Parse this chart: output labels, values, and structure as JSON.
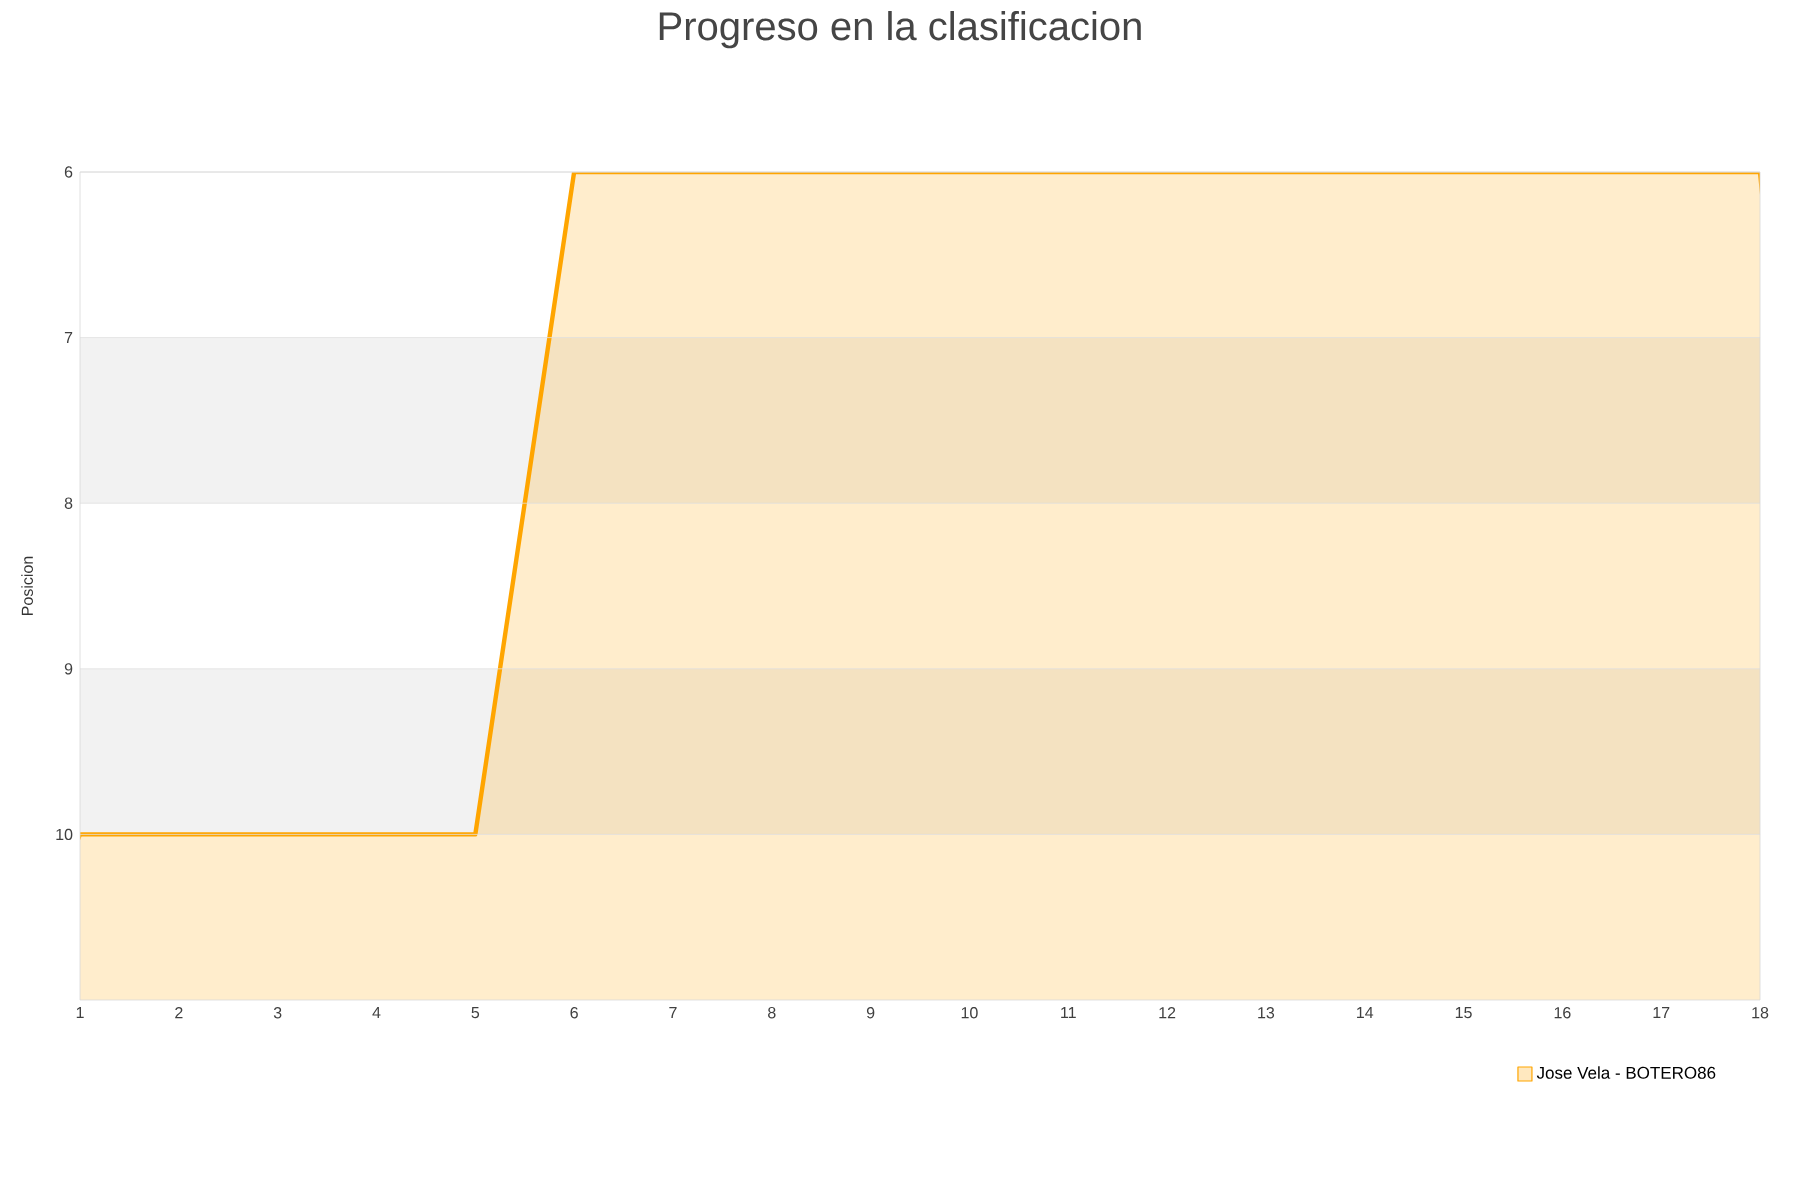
{
  "chart_data": {
    "type": "area",
    "title": "Progreso en la clasificacion",
    "ylabel": "Posicion",
    "x": [
      1,
      2,
      3,
      4,
      5,
      6,
      7,
      8,
      9,
      10,
      11,
      12,
      13,
      14,
      15,
      16,
      17,
      18
    ],
    "xlim": [
      1,
      18
    ],
    "xticks": [
      1,
      2,
      3,
      4,
      5,
      6,
      7,
      8,
      9,
      10,
      11,
      12,
      13,
      14,
      15,
      16,
      17,
      18
    ],
    "ylim": [
      11,
      6
    ],
    "yticks": [
      6,
      7,
      8,
      9,
      10
    ],
    "series": [
      {
        "name": "Jose Vela - BOTERO86",
        "color": "#ffa500",
        "values": [
          10,
          10,
          10,
          10,
          10,
          6,
          6,
          6,
          6,
          6,
          6,
          6,
          6,
          6,
          6,
          6,
          6,
          6
        ]
      }
    ],
    "bands": [
      {
        "axis": "y",
        "from": 7,
        "to": 8,
        "color": "#f2f2f2"
      },
      {
        "axis": "y",
        "from": 9,
        "to": 10,
        "color": "#f2f2f2"
      }
    ],
    "grid": "y",
    "legend": "bottom",
    "marker": "none",
    "line_style": "solid"
  }
}
